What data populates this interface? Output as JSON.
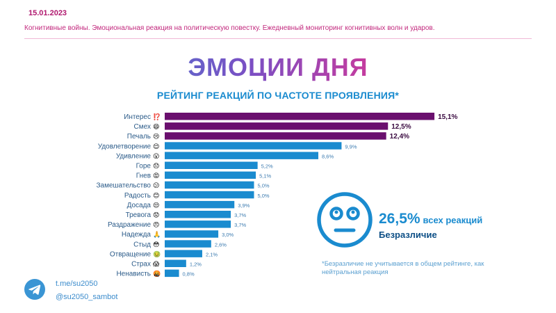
{
  "header": {
    "date": "15.01.2023",
    "subtitle": "Когнитивные войны. Эмоциональная реакция на политическую повестку. Ежедневный мониторинг когнитивных волн и ударов."
  },
  "main_title": "ЭМОЦИИ ДНЯ",
  "chart_data": {
    "type": "bar",
    "orientation": "horizontal",
    "title": "РЕЙТИНГ РЕАКЦИЙ ПО ЧАСТОТЕ ПРОЯВЛЕНИЯ*",
    "categories": [
      "Интерес",
      "Смех",
      "Печаль",
      "Удовлетворение",
      "Удивление",
      "Горе",
      "Гнев",
      "Замешательство",
      "Радость",
      "Досада",
      "Тревога",
      "Раздражение",
      "Надежда",
      "Стыд",
      "Отвращение",
      "Страх",
      "Ненависть"
    ],
    "emoji": [
      "⁉️",
      "😄",
      "😢",
      "😌",
      "😮",
      "😞",
      "😡",
      "😕",
      "😊",
      "😒",
      "😟",
      "😠",
      "🙏",
      "😳",
      "🤢",
      "😱",
      "🤬"
    ],
    "values": [
      15.1,
      12.5,
      12.4,
      9.9,
      8.6,
      5.2,
      5.1,
      5.0,
      5.0,
      3.9,
      3.7,
      3.7,
      3.0,
      2.6,
      2.1,
      1.2,
      0.8
    ],
    "value_labels": [
      "15,1%",
      "12,5%",
      "12,4%",
      "9,9%",
      "8,6%",
      "5,2%",
      "5,1%",
      "5,0%",
      "5,0%",
      "3,9%",
      "3,7%",
      "3,7%",
      "3,0%",
      "2,6%",
      "2,1%",
      "1,2%",
      "0,8%"
    ],
    "highlight_count": 3,
    "colors": {
      "top": "#6a0f6e",
      "rest": "#1a8bcf"
    }
  },
  "neutral": {
    "value": "26,5%",
    "suffix": "всех реакций",
    "label": "Безразличие",
    "footnote": "*Безразличие не учитывается в общем рейтинге, как нейтральная реакция",
    "icon": "neutral-face-icon"
  },
  "footer": {
    "link": "t.me/su2050",
    "handle": "@su2050_sambot",
    "icon": "telegram-icon"
  }
}
